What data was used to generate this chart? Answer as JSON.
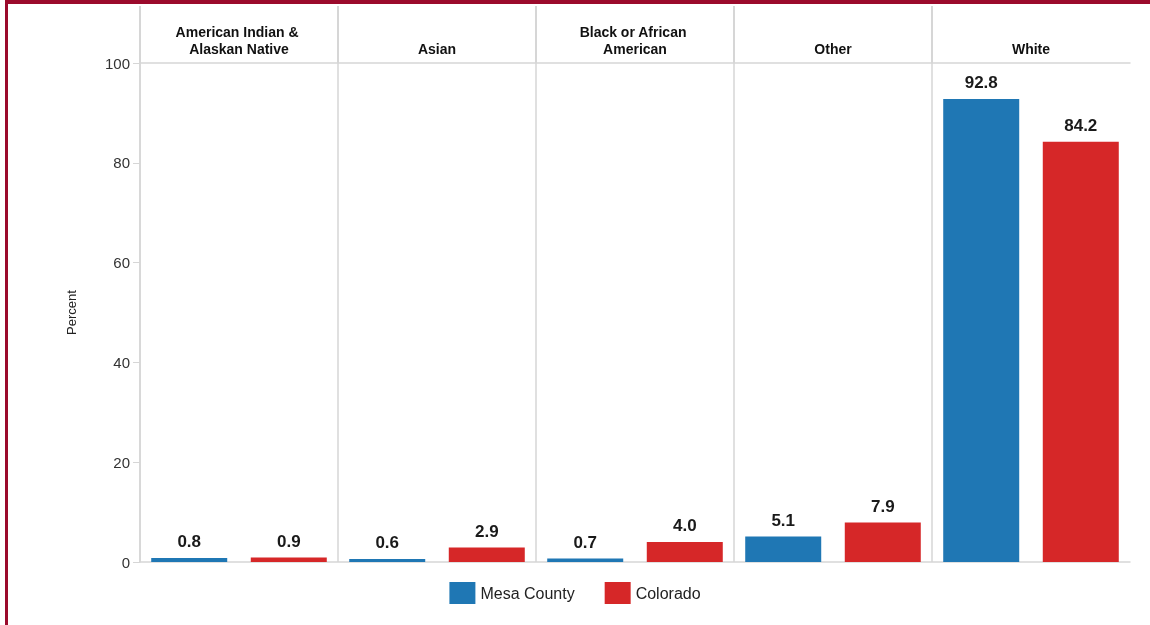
{
  "chart_data": {
    "type": "bar",
    "categories": [
      "American Indian & Alaskan Native",
      "Asian",
      "Black or African American",
      "Other",
      "White"
    ],
    "series": [
      {
        "name": "Mesa County",
        "color": "#1f77b4",
        "values": [
          0.8,
          0.6,
          0.7,
          5.1,
          92.8
        ],
        "value_labels": [
          "0.8",
          "0.6",
          "0.7",
          "5.1",
          "92.8"
        ]
      },
      {
        "name": "Colorado",
        "color": "#d62728",
        "values": [
          0.9,
          2.9,
          4.0,
          7.9,
          84.2
        ],
        "value_labels": [
          "0.9",
          "2.9",
          "4.0",
          "7.9",
          "84.2"
        ]
      }
    ],
    "ylabel": "Percent",
    "ylim": [
      0,
      100
    ],
    "yticks": [
      0,
      20,
      40,
      60,
      80,
      100
    ],
    "grid": false,
    "legend": "bottom"
  }
}
